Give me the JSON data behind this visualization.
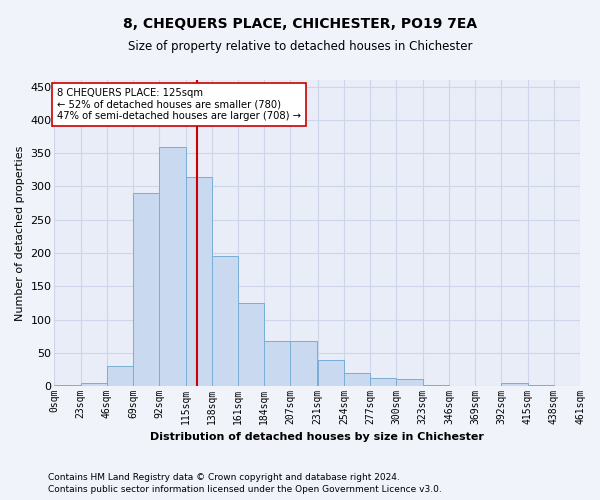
{
  "title": "8, CHEQUERS PLACE, CHICHESTER, PO19 7EA",
  "subtitle": "Size of property relative to detached houses in Chichester",
  "xlabel": "Distribution of detached houses by size in Chichester",
  "ylabel": "Number of detached properties",
  "bar_color": "#c9d9f0",
  "bar_edge_color": "#7aaed6",
  "bins": [
    0,
    23,
    46,
    69,
    92,
    115,
    138,
    161,
    184,
    207,
    231,
    254,
    277,
    300,
    323,
    346,
    369,
    392,
    415,
    438,
    461
  ],
  "tick_labels": [
    "0sqm",
    "23sqm",
    "46sqm",
    "69sqm",
    "92sqm",
    "115sqm",
    "138sqm",
    "161sqm",
    "184sqm",
    "207sqm",
    "231sqm",
    "254sqm",
    "277sqm",
    "300sqm",
    "323sqm",
    "346sqm",
    "369sqm",
    "392sqm",
    "415sqm",
    "438sqm",
    "461sqm"
  ],
  "bar_heights": [
    1,
    5,
    30,
    290,
    360,
    315,
    195,
    125,
    68,
    68,
    40,
    20,
    12,
    10,
    2,
    0,
    0,
    5,
    2,
    0
  ],
  "property_size": 125,
  "vline_color": "#cc0000",
  "annotation_line1": "8 CHEQUERS PLACE: 125sqm",
  "annotation_line2": "← 52% of detached houses are smaller (780)",
  "annotation_line3": "47% of semi-detached houses are larger (708) →",
  "annotation_box_color": "#ffffff",
  "annotation_box_edge_color": "#cc0000",
  "ylim": [
    0,
    460
  ],
  "yticks": [
    0,
    50,
    100,
    150,
    200,
    250,
    300,
    350,
    400,
    450
  ],
  "grid_color": "#cdd5e8",
  "footnote1": "Contains HM Land Registry data © Crown copyright and database right 2024.",
  "footnote2": "Contains public sector information licensed under the Open Government Licence v3.0.",
  "bg_color": "#f0f3fa",
  "plot_bg_color": "#e8edf7"
}
